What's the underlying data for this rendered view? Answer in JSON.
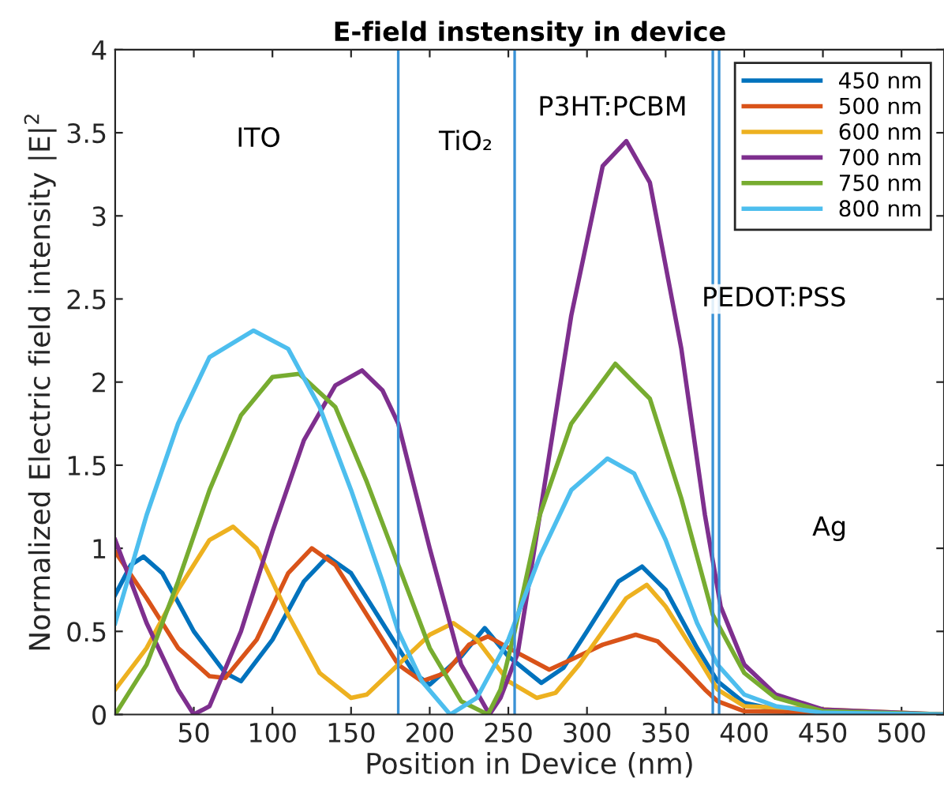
{
  "chart_data": {
    "type": "line",
    "title": "E-field instensity in device",
    "xlabel": "Position in Device (nm)",
    "ylabel": "Normalized Electric field intensity |E|$^{2}$",
    "xlim": [
      0,
      527
    ],
    "ylim": [
      0,
      4
    ],
    "xticks": [
      50,
      100,
      150,
      200,
      250,
      300,
      350,
      400,
      450,
      500
    ],
    "yticks": [
      0,
      0.5,
      1,
      1.5,
      2,
      2.5,
      3,
      3.5,
      4
    ],
    "grid": false,
    "legend": "top right",
    "marker": "none",
    "line_style": "solid",
    "series": [
      {
        "name": "450 nm",
        "color": "#0072bd",
        "x": [
          0,
          10,
          18,
          30,
          50,
          70,
          80,
          100,
          120,
          135,
          150,
          170,
          190,
          200,
          220,
          235,
          250,
          271,
          285,
          300,
          320,
          335,
          350,
          370,
          383,
          400,
          430,
          527
        ],
        "values": [
          0.72,
          0.9,
          0.95,
          0.85,
          0.5,
          0.25,
          0.2,
          0.45,
          0.8,
          0.95,
          0.85,
          0.55,
          0.25,
          0.18,
          0.35,
          0.52,
          0.35,
          0.19,
          0.28,
          0.5,
          0.8,
          0.89,
          0.75,
          0.4,
          0.2,
          0.07,
          0.01,
          0
        ]
      },
      {
        "name": "500 nm",
        "color": "#d95319",
        "x": [
          0,
          20,
          40,
          60,
          70,
          90,
          110,
          125,
          140,
          160,
          180,
          195,
          210,
          225,
          237,
          256,
          276,
          290,
          310,
          331,
          345,
          360,
          375,
          383,
          400,
          527
        ],
        "values": [
          0.98,
          0.7,
          0.4,
          0.23,
          0.22,
          0.45,
          0.85,
          1.0,
          0.9,
          0.6,
          0.3,
          0.2,
          0.25,
          0.42,
          0.47,
          0.37,
          0.27,
          0.33,
          0.42,
          0.48,
          0.44,
          0.3,
          0.15,
          0.08,
          0.02,
          0
        ]
      },
      {
        "name": "600 nm",
        "color": "#edb120",
        "x": [
          0,
          20,
          40,
          60,
          75,
          90,
          110,
          130,
          150,
          160,
          180,
          200,
          215,
          230,
          250,
          268,
          280,
          295,
          310,
          325,
          338,
          350,
          370,
          383,
          400,
          527
        ],
        "values": [
          0.15,
          0.4,
          0.75,
          1.05,
          1.13,
          1.0,
          0.6,
          0.25,
          0.1,
          0.12,
          0.3,
          0.48,
          0.55,
          0.45,
          0.2,
          0.1,
          0.13,
          0.3,
          0.5,
          0.7,
          0.78,
          0.65,
          0.35,
          0.15,
          0.05,
          0
        ]
      },
      {
        "name": "700 nm",
        "color": "#7e2f8e",
        "x": [
          0,
          20,
          40,
          50,
          60,
          80,
          100,
          120,
          140,
          157,
          170,
          180,
          200,
          220,
          238,
          245,
          256,
          270,
          290,
          310,
          325,
          340,
          360,
          375,
          385,
          400,
          420,
          450,
          527
        ],
        "values": [
          1.05,
          0.55,
          0.15,
          0.0,
          0.05,
          0.5,
          1.1,
          1.65,
          1.98,
          2.07,
          1.95,
          1.75,
          1.0,
          0.3,
          0.0,
          0.1,
          0.37,
          1.2,
          2.4,
          3.3,
          3.45,
          3.2,
          2.2,
          1.2,
          0.65,
          0.3,
          0.12,
          0.03,
          0
        ]
      },
      {
        "name": "750 nm",
        "color": "#77ac30",
        "x": [
          0,
          20,
          40,
          60,
          80,
          100,
          117,
          140,
          160,
          180,
          200,
          220,
          237,
          245,
          254,
          270,
          290,
          318,
          340,
          360,
          380,
          400,
          420,
          450,
          527
        ],
        "values": [
          0.0,
          0.3,
          0.8,
          1.35,
          1.8,
          2.03,
          2.05,
          1.85,
          1.4,
          0.9,
          0.4,
          0.08,
          0.0,
          0.15,
          0.5,
          1.2,
          1.75,
          2.11,
          1.9,
          1.3,
          0.6,
          0.25,
          0.1,
          0.02,
          0
        ]
      },
      {
        "name": "800 nm",
        "color": "#4dbeee",
        "x": [
          0,
          20,
          40,
          60,
          88,
          110,
          130,
          150,
          170,
          180,
          195,
          213,
          230,
          250,
          254,
          270,
          290,
          313,
          330,
          350,
          370,
          383,
          400,
          420,
          450,
          527
        ],
        "values": [
          0.55,
          1.2,
          1.75,
          2.15,
          2.31,
          2.2,
          1.85,
          1.35,
          0.8,
          0.5,
          0.2,
          0.0,
          0.1,
          0.45,
          0.55,
          0.95,
          1.35,
          1.54,
          1.45,
          1.05,
          0.55,
          0.3,
          0.12,
          0.05,
          0.01,
          0
        ]
      }
    ],
    "ref_lines": [
      {
        "axis": "x",
        "value": 180,
        "color": "#3a92d6"
      },
      {
        "axis": "x",
        "value": 254,
        "color": "#3a92d6"
      },
      {
        "axis": "x",
        "value": 380,
        "color": "#3a92d6"
      },
      {
        "axis": "x",
        "value": 384,
        "color": "#3a92d6"
      }
    ],
    "annotations": [
      "ITO",
      "TiO₂",
      "P3HT:PCBM",
      "PEDOT:PSS",
      "Ag"
    ]
  }
}
